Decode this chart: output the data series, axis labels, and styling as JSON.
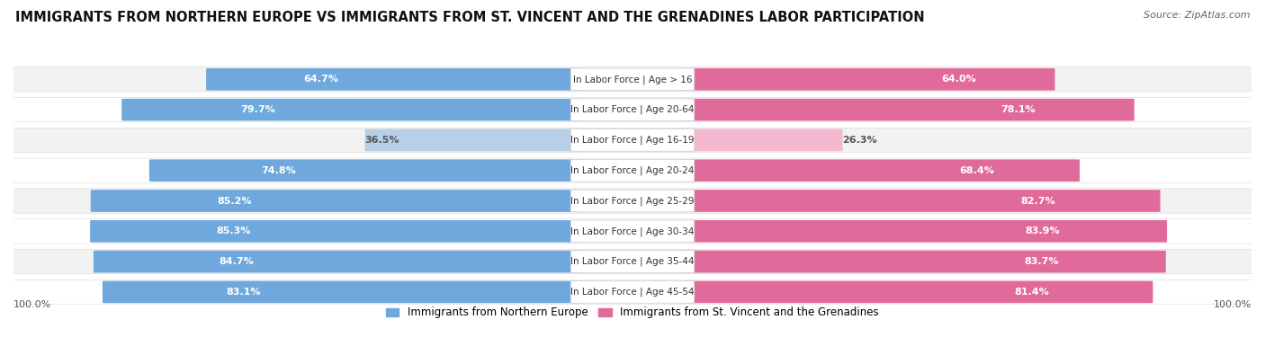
{
  "title": "IMMIGRANTS FROM NORTHERN EUROPE VS IMMIGRANTS FROM ST. VINCENT AND THE GRENADINES LABOR PARTICIPATION",
  "source": "Source: ZipAtlas.com",
  "categories": [
    "In Labor Force | Age > 16",
    "In Labor Force | Age 20-64",
    "In Labor Force | Age 16-19",
    "In Labor Force | Age 20-24",
    "In Labor Force | Age 25-29",
    "In Labor Force | Age 30-34",
    "In Labor Force | Age 35-44",
    "In Labor Force | Age 45-54"
  ],
  "left_values": [
    64.7,
    79.7,
    36.5,
    74.8,
    85.2,
    85.3,
    84.7,
    83.1
  ],
  "right_values": [
    64.0,
    78.1,
    26.3,
    68.4,
    82.7,
    83.9,
    83.7,
    81.4
  ],
  "left_color": "#6fa8dc",
  "left_color_light": "#b8cfe8",
  "right_color": "#e06b9a",
  "right_color_light": "#f4b8d1",
  "row_bg_even": "#f2f2f2",
  "row_bg_odd": "#ffffff",
  "label_color_white": "#ffffff",
  "label_color_dark": "#555555",
  "legend_left": "Immigrants from Northern Europe",
  "legend_right": "Immigrants from St. Vincent and the Grenadines",
  "title_fontsize": 10.5,
  "source_fontsize": 8,
  "bar_label_fontsize": 8,
  "category_fontsize": 7.5,
  "legend_fontsize": 8.5,
  "axis_label_fontsize": 8
}
